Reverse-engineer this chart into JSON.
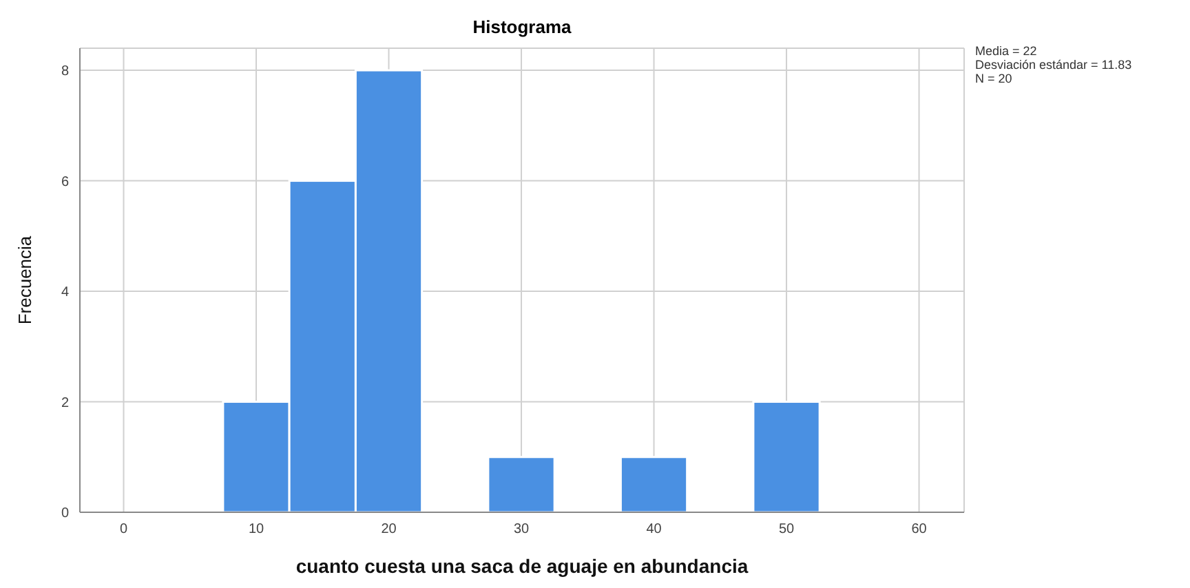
{
  "chart_data": {
    "type": "histogram",
    "title": "Histograma",
    "xlabel": "cuanto cuesta una saca de aguaje en abundancia",
    "ylabel": "Frecuencia",
    "bins": [
      7.5,
      12.5,
      17.5,
      22.5,
      27.5,
      32.5,
      37.5,
      42.5,
      47.5,
      52.5
    ],
    "values": [
      2,
      6,
      8,
      0,
      1,
      0,
      1,
      0,
      2
    ],
    "color": "#4a90e2",
    "xlim": [
      -3.3,
      63.4
    ],
    "xticks": [
      0,
      10,
      20,
      30,
      40,
      50,
      60
    ],
    "ylim": [
      0,
      8.4
    ],
    "yticks": [
      0,
      2,
      4,
      6,
      8
    ],
    "grid": true,
    "annotations": [
      "Media = 22",
      "Desviación estándar = 11.83",
      "N = 20"
    ]
  }
}
